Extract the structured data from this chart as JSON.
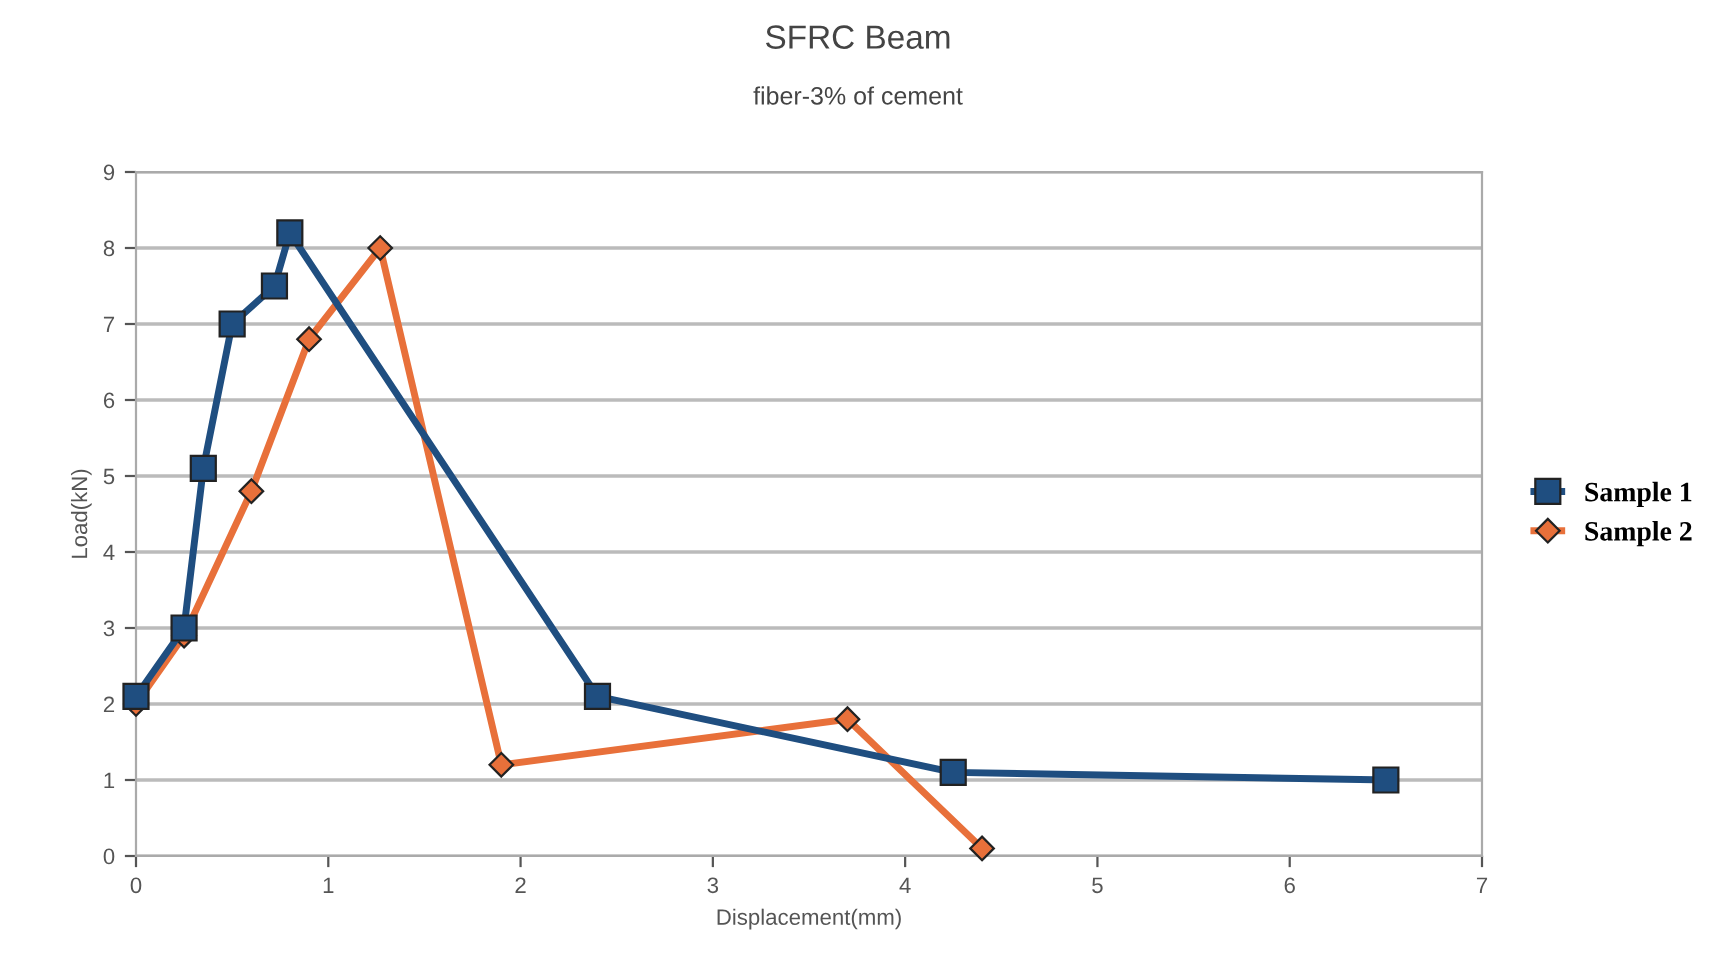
{
  "chart_data": {
    "type": "line",
    "title": "SFRC Beam",
    "subtitle": "fiber-3% of cement",
    "xlabel": "Displacement(mm)",
    "ylabel": "Load(kN)",
    "xlim": [
      0,
      7
    ],
    "xticks": [
      0,
      1,
      2,
      3,
      4,
      5,
      6,
      7
    ],
    "ylim": [
      0,
      9
    ],
    "yticks": [
      0,
      1,
      2,
      3,
      4,
      5,
      6,
      7,
      8,
      9
    ],
    "grid": "y",
    "legend": "right",
    "series": [
      {
        "name": "Sample 1",
        "color": "#1f4e80",
        "marker": "square",
        "x": [
          0,
          0.25,
          0.35,
          0.5,
          0.72,
          0.8,
          2.4,
          4.25,
          6.5
        ],
        "values": [
          2.1,
          3,
          5.1,
          7,
          7.5,
          8.2,
          2.1,
          1.1,
          1.0
        ]
      },
      {
        "name": "Sample 2",
        "color": "#e8703a",
        "marker": "diamond",
        "x": [
          0,
          0.25,
          0.6,
          0.9,
          1.27,
          1.9,
          3.7,
          4.4
        ],
        "values": [
          2.0,
          2.9,
          4.8,
          6.8,
          8.0,
          1.2,
          1.8,
          0.1
        ]
      }
    ]
  }
}
